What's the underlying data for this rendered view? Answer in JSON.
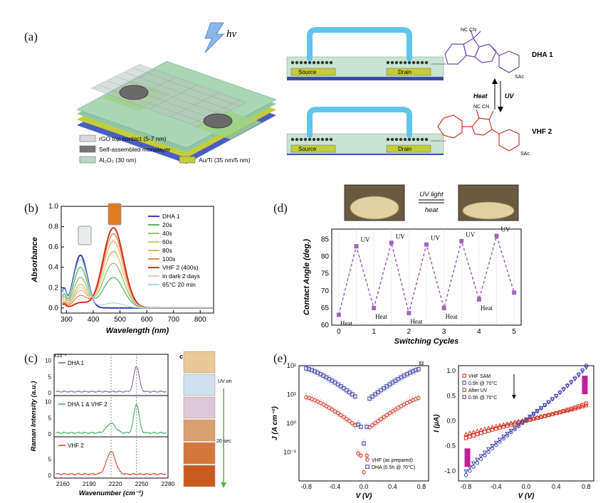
{
  "panel_a": {
    "letter": "(a)",
    "hv": "hν",
    "legend": [
      {
        "label": "rGO top contact (5-7 nm)",
        "color": "#d8d8d8"
      },
      {
        "label": "Self-assembled monolayer",
        "color": "#777777"
      },
      {
        "label": "Al₂O₃ (30 nm)",
        "color": "#b9d9c7"
      },
      {
        "label": "Au/Ti (35 nm/5 nm)",
        "color": "#c4cc3a"
      }
    ],
    "device_labels": {
      "source": "Source",
      "drain": "Drain"
    },
    "molecules": {
      "dha": "DHA 1",
      "vhf": "VHF 2",
      "heat": "Heat",
      "uv": "UV",
      "nc_cn": "NC CN",
      "sac": "SAc"
    }
  },
  "panel_b": {
    "letter": "(b)"
  },
  "panel_c": {
    "letter": "(c)",
    "inset_letter": "c",
    "uv_on": "UV on",
    "time": "20 sec"
  },
  "panel_d": {
    "letter": "(d)",
    "uv_light": "UV light",
    "heat": "heat"
  },
  "panel_e": {
    "letter": "(e)"
  },
  "chart_data": [
    {
      "id": "b",
      "type": "line",
      "xlabel": "Wavelength (nm)",
      "ylabel": "Absorbance",
      "xlim": [
        280,
        850
      ],
      "ylim": [
        -0.05,
        1.0
      ],
      "xticks": [
        300,
        400,
        500,
        600,
        700,
        800
      ],
      "yticks": [
        0.0,
        0.2,
        0.4,
        0.6,
        0.8,
        1.0
      ],
      "series": [
        {
          "name": "DHA 1",
          "color": "#3a3fb0",
          "peak1": 0.52,
          "peak2": 0.0
        },
        {
          "name": "20s",
          "color": "#5fb05f",
          "peak1": 0.4,
          "peak2": 0.3
        },
        {
          "name": "40s",
          "color": "#8ec46a",
          "peak1": 0.3,
          "peak2": 0.44
        },
        {
          "name": "60s",
          "color": "#c8cf6a",
          "peak1": 0.23,
          "peak2": 0.56
        },
        {
          "name": "80s",
          "color": "#e8b070",
          "peak1": 0.17,
          "peak2": 0.66
        },
        {
          "name": "100s",
          "color": "#e08a50",
          "peak1": 0.12,
          "peak2": 0.73
        },
        {
          "name": "VHF 2 (400s)",
          "color": "#d3311f",
          "peak1": 0.05,
          "peak2": 0.79
        },
        {
          "name": "in dark 2 days",
          "color": "#f0c9a8",
          "peak1": 0.2,
          "peak2": 0.55
        },
        {
          "name": "65°C 20 min",
          "color": "#a8d8ec",
          "peak1": 0.48,
          "peak2": 0.05
        }
      ]
    },
    {
      "id": "c",
      "type": "line",
      "xlabel": "Wavenumber (cm⁻¹)",
      "ylabel": "Raman Intensity (a.u.)",
      "xlim": [
        2150,
        2280
      ],
      "xticks": [
        2160,
        2190,
        2220,
        2250,
        2280
      ],
      "scale_label": "x10⁻³",
      "subplots": [
        {
          "name": "DHA 1",
          "color": "#7a5aa6",
          "yticks": [
            0,
            5,
            10
          ],
          "peaks": [
            {
              "x": 2244,
              "h": 8.0
            }
          ]
        },
        {
          "name": "DHA 1 & VHF 2",
          "color": "#3aa65a",
          "yticks": [
            0,
            5,
            10
          ],
          "peaks": [
            {
              "x": 2215,
              "h": 3.0
            },
            {
              "x": 2244,
              "h": 9.0
            }
          ]
        },
        {
          "name": "VHF 2",
          "color": "#d3311f",
          "yticks": [
            0,
            5
          ],
          "peaks": [
            {
              "x": 2215,
              "h": 7.0
            }
          ]
        }
      ],
      "dashed_x": [
        2215,
        2244
      ]
    },
    {
      "id": "d",
      "type": "line",
      "xlabel": "Switching Cycles",
      "ylabel": "Contact Angle (deg.)",
      "xlim": [
        -0.2,
        5.2
      ],
      "ylim": [
        60,
        88
      ],
      "xticks": [
        0,
        1,
        2,
        3,
        4,
        5
      ],
      "yticks": [
        60,
        65,
        70,
        75,
        80,
        85
      ],
      "x": [
        0,
        0.5,
        1,
        1.5,
        2,
        2.5,
        3,
        3.5,
        4,
        4.5,
        5
      ],
      "y": [
        63,
        83,
        65,
        84,
        63.5,
        83.5,
        65,
        84.5,
        67.5,
        86,
        69.5
      ],
      "labels": [
        "Heat",
        "UV",
        "Heat",
        "UV",
        "Heat",
        "UV",
        "Heat",
        "UV",
        "Heat",
        "UV",
        ""
      ]
    },
    {
      "id": "e1",
      "type": "scatter",
      "xlabel": "V (V)",
      "ylabel": "J (A cm⁻²)",
      "xlim": [
        -0.9,
        0.9
      ],
      "xticks": [
        -0.8,
        -0.4,
        0.0,
        0.4,
        0.8
      ],
      "ylog": [
        -2,
        2
      ],
      "yticks": [
        "10⁻¹",
        "10⁰",
        "10¹",
        "10²"
      ],
      "series": [
        {
          "name": "VHF (as prepared)",
          "color": "#d3311f",
          "marker": "circle",
          "j_at_08": 8
        },
        {
          "name": "DHA (0.5h @ 70°C)",
          "color": "#3a3fb0",
          "marker": "square",
          "j_at_08": 80
        }
      ]
    },
    {
      "id": "e2",
      "type": "scatter",
      "xlabel": "V (V)",
      "ylabel": "I (µA)",
      "xlim": [
        -0.9,
        0.9
      ],
      "ylim": [
        -1.2,
        1.1
      ],
      "xticks": [
        -0.8,
        -0.4,
        0.0,
        0.4,
        0.8
      ],
      "yticks": [
        -1.0,
        -0.5,
        0.0,
        0.5,
        1.0
      ],
      "series": [
        {
          "name": "VHF SAM",
          "color": "#d3311f",
          "marker": "square",
          "i_at_08": 0.3
        },
        {
          "name": "0.5h @ 70°C",
          "color": "#3a3fb0",
          "marker": "circle",
          "i_at_08": 0.95
        },
        {
          "name": "After UV",
          "color": "#d3311f",
          "marker": "triangle",
          "i_at_08": 0.25
        },
        {
          "name": "0.5h @ 70°C",
          "color": "#3a3fb0",
          "marker": "triangle-down",
          "i_at_08": 0.9
        }
      ]
    }
  ]
}
